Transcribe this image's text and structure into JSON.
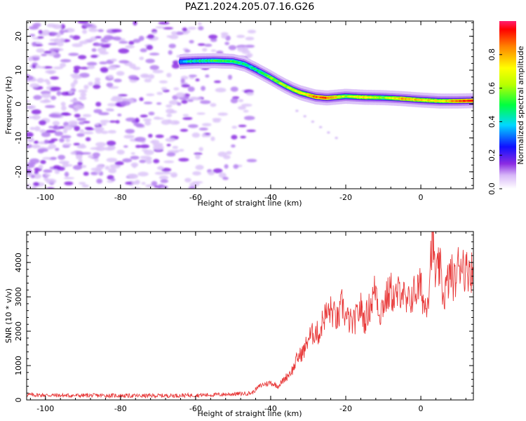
{
  "title": "PAZ1.2024.205.07.16.G26",
  "colors": {
    "snr_line": "#e83a3a",
    "axis": "#000000"
  },
  "chart_data": [
    {
      "type": "heatmap",
      "xlabel": "Height of straight line (km)",
      "ylabel": "Frequency (Hz)",
      "xlim": [
        -105,
        14
      ],
      "ylim": [
        -25,
        24.5
      ],
      "x_ticks": [
        -100,
        -80,
        -60,
        -40,
        -20,
        0
      ],
      "x_tick_labels": [
        "-100",
        "-80",
        "-60",
        "-40",
        "-20",
        "0"
      ],
      "y_ticks": [
        -20,
        -10,
        0,
        10,
        20
      ],
      "y_tick_labels": [
        "-20",
        "-10",
        "0",
        "10",
        "20"
      ],
      "ridge": {
        "x": [
          -64,
          -60,
          -55,
          -50,
          -47,
          -44,
          -42,
          -40,
          -38,
          -36,
          -34,
          -32,
          -30,
          -28,
          -25,
          -20,
          -15,
          -10,
          -5,
          0,
          5,
          10,
          14
        ],
        "frequency": [
          12.5,
          12.7,
          12.8,
          12.6,
          11.8,
          10.2,
          9.0,
          7.8,
          6.5,
          5.3,
          4.2,
          3.3,
          2.7,
          2.1,
          1.8,
          2.3,
          2.0,
          1.9,
          1.6,
          1.2,
          0.9,
          0.9,
          1.0
        ],
        "amplitude": [
          0.35,
          0.45,
          0.5,
          0.55,
          0.45,
          0.45,
          0.5,
          0.55,
          0.6,
          0.6,
          0.65,
          0.7,
          0.75,
          0.85,
          0.9,
          0.6,
          0.75,
          0.6,
          0.8,
          0.75,
          0.7,
          0.85,
          0.95
        ]
      },
      "noise_region_x": [
        -105,
        -45
      ]
    },
    {
      "type": "line",
      "xlabel": "Height of straight line (km)",
      "ylabel": "SNR (10 * v/v)",
      "xlim": [
        -105,
        14
      ],
      "ylim": [
        0,
        4900
      ],
      "x_ticks": [
        -100,
        -80,
        -60,
        -40,
        -20,
        0
      ],
      "x_tick_labels": [
        "-100",
        "-80",
        "-60",
        "-40",
        "-20",
        "0"
      ],
      "y_ticks": [
        0,
        1000,
        2000,
        3000,
        4000
      ],
      "y_tick_labels": [
        "0",
        "1000",
        "2000",
        "3000",
        "4000"
      ],
      "series": [
        {
          "x": [
            -105,
            -95,
            -85,
            -75,
            -65,
            -55,
            -48,
            -45,
            -43,
            -42,
            -40,
            -38,
            -36,
            -34,
            -33,
            -31,
            -30,
            -28,
            -27,
            -26,
            -24,
            -22,
            -21,
            -20,
            -18,
            -16,
            -15,
            -13,
            -12,
            -11,
            -10,
            -8,
            -7,
            -5,
            -4,
            -2,
            0,
            1,
            2,
            3,
            4,
            5,
            6,
            8,
            9,
            10,
            11,
            12,
            13,
            14
          ],
          "values": [
            150,
            130,
            130,
            120,
            130,
            150,
            180,
            200,
            400,
            450,
            500,
            400,
            650,
            900,
            1200,
            1450,
            1800,
            2000,
            1900,
            2400,
            2600,
            2300,
            2800,
            2400,
            2200,
            2700,
            2300,
            2900,
            3300,
            2500,
            2800,
            3200,
            2900,
            3300,
            2700,
            3100,
            3300,
            2700,
            3100,
            4800,
            3500,
            3900,
            3000,
            3700,
            3400,
            3900,
            4100,
            3700,
            3900,
            3600
          ]
        }
      ]
    }
  ],
  "colorbar": {
    "label": "Normalized spectral amplitude",
    "range": [
      0,
      1
    ],
    "ticks": [
      0,
      0.2,
      0.4,
      0.6,
      0.8
    ],
    "tick_labels": [
      "0.0",
      "0.2",
      "0.4",
      "0.6",
      "0.8"
    ]
  }
}
